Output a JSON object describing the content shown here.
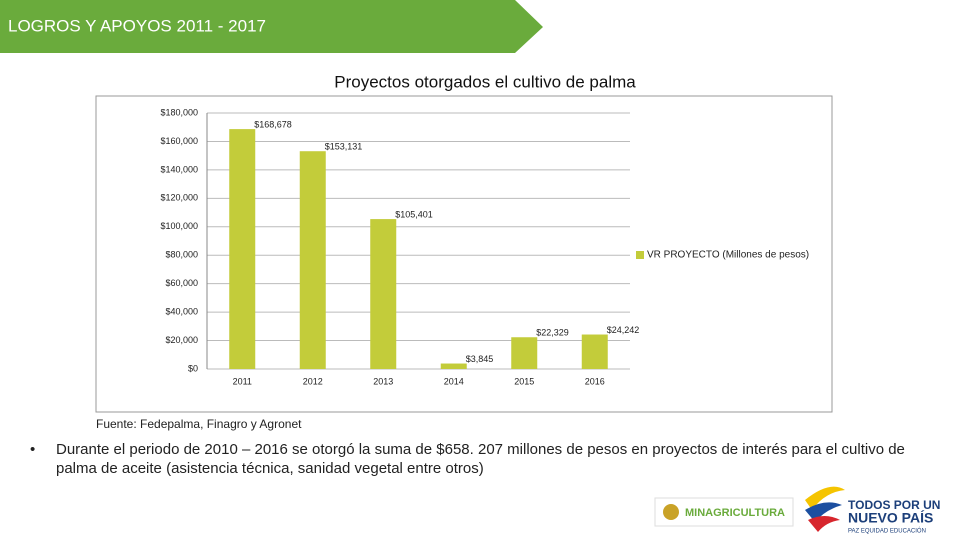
{
  "header": {
    "title": "LOGROS Y APOYOS 2011 - 2017"
  },
  "chart_data": {
    "type": "bar",
    "title": "Proyectos otorgados el cultivo de palma",
    "categories": [
      "2011",
      "2012",
      "2013",
      "2014",
      "2015",
      "2016"
    ],
    "series": [
      {
        "name": "VR PROYECTO (Millones de pesos)",
        "color": "#c3cc3a",
        "values": [
          168678,
          153131,
          105401,
          3845,
          22329,
          24242
        ],
        "value_labels": [
          "$168,678",
          "$153,131",
          "$105,401",
          "$3,845",
          "$22,329",
          "$24,242"
        ]
      }
    ],
    "ylim": [
      0,
      180000
    ],
    "yticks": [
      {
        "value": 0,
        "label": "$0"
      },
      {
        "value": 20000,
        "label": "$20,000"
      },
      {
        "value": 40000,
        "label": "$40,000"
      },
      {
        "value": 60000,
        "label": "$60,000"
      },
      {
        "value": 80000,
        "label": "$80,000"
      },
      {
        "value": 100000,
        "label": "$100,000"
      },
      {
        "value": 120000,
        "label": "$120,000"
      },
      {
        "value": 140000,
        "label": "$140,000"
      },
      {
        "value": 160000,
        "label": "$160,000"
      },
      {
        "value": 180000,
        "label": "$180,000"
      }
    ],
    "grid": true,
    "legend": "right"
  },
  "source": "Fuente: Fedepalma, Finagro y Agronet",
  "bullet": {
    "marker": "•",
    "text": "Durante el periodo de 2010 – 2016 se otorgó la suma de $658. 207 millones de pesos en proyectos de interés para el cultivo de palma de aceite (asistencia técnica, sanidad vegetal entre otros)"
  },
  "logos": {
    "ministry": "MINAGRICULTURA",
    "line1": "TODOS POR UN",
    "line2": "NUEVO PAÍS",
    "line3": "PAZ  EQUIDAD  EDUCACIÓN"
  }
}
